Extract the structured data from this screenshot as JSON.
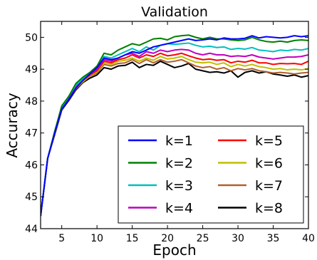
{
  "chart_data": {
    "type": "line",
    "title": "Validation",
    "xlabel": "Epoch",
    "ylabel": "Accuracy",
    "xlim": [
      2,
      40
    ],
    "ylim": [
      44,
      50.5
    ],
    "xticks": [
      5,
      10,
      15,
      20,
      25,
      30,
      35,
      40
    ],
    "yticks": [
      44,
      45,
      46,
      47,
      48,
      49,
      50
    ],
    "grid": false,
    "legend_position": "lower-right",
    "legend_columns": 2,
    "x": [
      2,
      3,
      4,
      5,
      6,
      7,
      8,
      9,
      10,
      11,
      12,
      13,
      14,
      15,
      16,
      17,
      18,
      19,
      20,
      21,
      22,
      23,
      24,
      25,
      26,
      27,
      28,
      29,
      30,
      31,
      32,
      33,
      34,
      35,
      36,
      37,
      38,
      39,
      40
    ],
    "series": [
      {
        "name": "k=1",
        "color": "#0000ff",
        "values": [
          44.4,
          46.2,
          47.0,
          47.75,
          48.05,
          48.4,
          48.65,
          48.85,
          49.05,
          49.35,
          49.3,
          49.35,
          49.45,
          49.55,
          49.5,
          49.6,
          49.7,
          49.75,
          49.8,
          49.85,
          49.9,
          49.95,
          49.9,
          49.92,
          49.95,
          49.92,
          49.98,
          49.95,
          49.95,
          49.97,
          50.05,
          49.98,
          50.02,
          50.0,
          49.98,
          50.0,
          50.05,
          50.02,
          50.05
        ]
      },
      {
        "name": "k=2",
        "color": "#008000",
        "values": [
          44.4,
          46.2,
          47.05,
          47.85,
          48.15,
          48.55,
          48.75,
          48.9,
          49.1,
          49.5,
          49.45,
          49.6,
          49.7,
          49.8,
          49.75,
          49.85,
          49.95,
          49.97,
          49.92,
          50.02,
          50.05,
          50.07,
          50.0,
          49.95,
          50.0,
          49.95,
          49.95,
          49.92,
          49.9,
          49.92,
          50.0,
          49.92,
          49.87,
          49.85,
          49.88,
          49.85,
          49.9,
          49.92,
          49.9
        ]
      },
      {
        "name": "k=3",
        "color": "#00bfbf",
        "values": [
          44.4,
          46.2,
          47.05,
          47.8,
          48.15,
          48.5,
          48.7,
          48.9,
          49.05,
          49.4,
          49.35,
          49.45,
          49.55,
          49.65,
          49.55,
          49.7,
          49.6,
          49.75,
          49.8,
          49.78,
          49.8,
          49.82,
          49.75,
          49.7,
          49.72,
          49.68,
          49.7,
          49.62,
          49.65,
          49.63,
          49.68,
          49.6,
          49.58,
          49.55,
          49.6,
          49.58,
          49.62,
          49.6,
          49.65
        ]
      },
      {
        "name": "k=4",
        "color": "#bf00bf",
        "values": [
          44.4,
          46.2,
          47.02,
          47.8,
          48.1,
          48.45,
          48.68,
          48.85,
          49.0,
          49.3,
          49.25,
          49.35,
          49.45,
          49.5,
          49.4,
          49.55,
          49.5,
          49.6,
          49.55,
          49.6,
          49.62,
          49.6,
          49.5,
          49.45,
          49.5,
          49.45,
          49.45,
          49.4,
          49.42,
          49.4,
          49.45,
          49.38,
          49.35,
          49.32,
          49.35,
          49.38,
          49.38,
          49.4,
          49.45
        ]
      },
      {
        "name": "k=5",
        "color": "#ff0000",
        "values": [
          44.4,
          46.2,
          47.0,
          47.78,
          48.1,
          48.42,
          48.65,
          48.82,
          48.95,
          49.25,
          49.2,
          49.3,
          49.35,
          49.45,
          49.35,
          49.45,
          49.4,
          49.5,
          49.42,
          49.45,
          49.5,
          49.42,
          49.35,
          49.3,
          49.32,
          49.28,
          49.3,
          49.2,
          49.25,
          49.22,
          49.28,
          49.2,
          49.2,
          49.15,
          49.18,
          49.17,
          49.18,
          49.15,
          49.25
        ]
      },
      {
        "name": "k=6",
        "color": "#bfbf00",
        "values": [
          44.4,
          46.2,
          47.0,
          47.77,
          48.08,
          48.4,
          48.62,
          48.8,
          48.92,
          49.2,
          49.15,
          49.25,
          49.28,
          49.35,
          49.25,
          49.35,
          49.28,
          49.4,
          49.32,
          49.35,
          49.4,
          49.3,
          49.22,
          49.2,
          49.22,
          49.15,
          49.2,
          49.08,
          49.15,
          49.1,
          49.15,
          49.08,
          49.05,
          49.0,
          49.02,
          48.98,
          49.0,
          48.98,
          49.02
        ]
      },
      {
        "name": "k=7",
        "color": "#b06030",
        "values": [
          44.4,
          46.2,
          46.98,
          47.75,
          48.05,
          48.38,
          48.6,
          48.78,
          48.88,
          49.15,
          49.1,
          49.18,
          49.2,
          49.3,
          49.18,
          49.3,
          49.2,
          49.3,
          49.22,
          49.25,
          49.3,
          49.2,
          49.1,
          49.05,
          49.08,
          49.0,
          49.05,
          48.95,
          49.02,
          48.98,
          49.02,
          48.95,
          48.92,
          48.88,
          48.9,
          48.88,
          48.85,
          48.88,
          48.9
        ]
      },
      {
        "name": "k=8",
        "color": "#000000",
        "values": [
          44.4,
          46.2,
          46.95,
          47.72,
          48.02,
          48.35,
          48.58,
          48.72,
          48.82,
          49.05,
          49.0,
          49.1,
          49.12,
          49.22,
          49.05,
          49.15,
          49.12,
          49.25,
          49.15,
          49.05,
          49.1,
          49.18,
          49.0,
          48.95,
          48.9,
          48.92,
          48.88,
          48.95,
          48.75,
          48.9,
          48.95,
          48.88,
          48.92,
          48.85,
          48.82,
          48.78,
          48.82,
          48.75,
          48.8
        ]
      }
    ]
  }
}
